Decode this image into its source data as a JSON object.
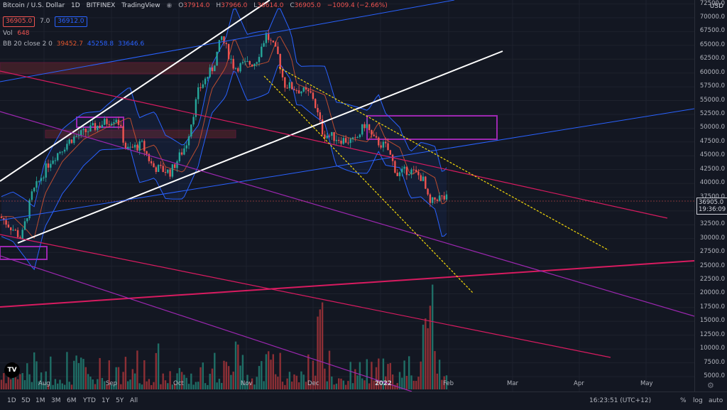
{
  "header": {
    "symbol": "Bitcoin / U.S. Dollar",
    "interval": "1D",
    "exchange": "BITFINEX",
    "source": "TradingView",
    "open_label": "O",
    "open": "37914.0",
    "high_label": "H",
    "high": "37966.0",
    "low_label": "L",
    "low": "36614.0",
    "close_label": "C",
    "close": "36905.0",
    "change": "−1009.4 (−2.66%)",
    "bid": "36905.0",
    "spread": "7.0",
    "ask": "36912.0"
  },
  "indicators": {
    "vol_label": "Vol",
    "vol_value": "648",
    "bb_label": "BB 20 close 2 0",
    "bb_basis": "39452.7",
    "bb_upper": "45258.8",
    "bb_lower": "33646.6"
  },
  "price_axis": {
    "currency": "USD",
    "ticks": [
      "72500.0",
      "70000.0",
      "67500.0",
      "65000.0",
      "62500.0",
      "60000.0",
      "57500.0",
      "55000.0",
      "52500.0",
      "50000.0",
      "47500.0",
      "45000.0",
      "42500.0",
      "40000.0",
      "37500.0",
      "35000.0",
      "32500.0",
      "30000.0",
      "27500.0",
      "25000.0",
      "22500.0",
      "20000.0",
      "17500.0",
      "15000.0",
      "12500.0",
      "10000.0",
      "7500.0",
      "5000.0"
    ],
    "last_price": "36905.0",
    "countdown": "19:36:09"
  },
  "time_axis": {
    "ticks": [
      "Aug",
      "Sep",
      "Oct",
      "Nov",
      "Dec",
      "2022",
      "Feb",
      "Mar",
      "Apr",
      "May"
    ]
  },
  "bottom_bar": {
    "timeframes": [
      "1D",
      "5D",
      "1M",
      "3M",
      "6M",
      "YTD",
      "1Y",
      "5Y",
      "All"
    ],
    "clock": "16:23:51 (UTC+12)",
    "percent_label": "%",
    "log_label": "log",
    "auto_label": "auto"
  },
  "logo_text": "TV",
  "colors": {
    "background": "#131722",
    "up": "#26a69a",
    "down": "#ef5350",
    "bb_band": "#2962ff",
    "bb_basis": "#e4572e",
    "trend_white": "#ffffff",
    "trend_yellow": "#f5d90a",
    "trend_red": "#d81b60",
    "trend_purple": "#9c27b0",
    "trend_blue": "#2962ff",
    "zone_purple": "#9c27b0"
  },
  "icons": [
    "settings-icon",
    "eye-icon"
  ]
}
